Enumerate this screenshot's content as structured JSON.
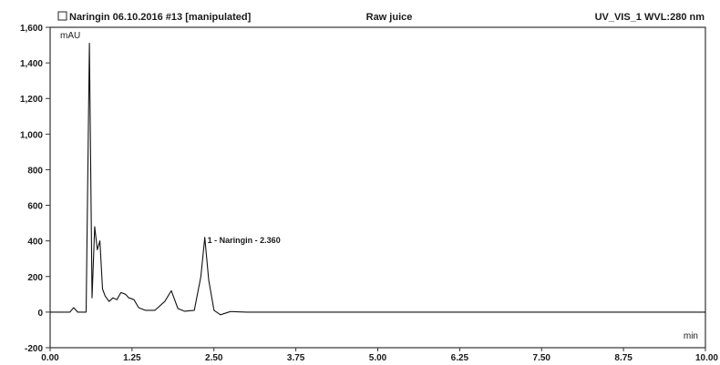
{
  "header": {
    "sample": "Naringin 06.10.2016 #13 [manipulated]",
    "title": "Raw juice",
    "channel": "UV_VIS_1 WVL:280 nm"
  },
  "chart_data": {
    "type": "line",
    "xlabel": "min",
    "ylabel": "mAU",
    "xlim": [
      0,
      10
    ],
    "ylim": [
      -200,
      1600
    ],
    "x_ticks": [
      "0.00",
      "1.25",
      "2.50",
      "3.75",
      "5.00",
      "6.25",
      "7.50",
      "8.75",
      "10.00"
    ],
    "y_ticks": [
      "-200",
      "0",
      "200",
      "400",
      "600",
      "800",
      "1,000",
      "1,200",
      "1,400",
      "1,600"
    ],
    "grid": false,
    "series": [
      {
        "x": [
          0.0,
          0.3,
          0.36,
          0.42,
          0.55,
          0.6,
          0.64,
          0.68,
          0.72,
          0.76,
          0.8,
          0.84,
          0.9,
          0.96,
          1.02,
          1.08,
          1.15,
          1.2,
          1.28,
          1.35,
          1.45,
          1.6,
          1.75,
          1.85,
          1.95,
          2.05,
          2.2,
          2.3,
          2.36,
          2.42,
          2.5,
          2.6,
          2.75,
          3.0,
          4.0,
          5.0,
          6.0,
          7.0,
          8.0,
          9.0,
          10.0
        ],
        "y": [
          0,
          0,
          25,
          0,
          0,
          1510,
          80,
          480,
          350,
          400,
          130,
          90,
          60,
          80,
          70,
          110,
          100,
          80,
          70,
          25,
          10,
          10,
          60,
          120,
          20,
          5,
          10,
          200,
          420,
          180,
          10,
          -15,
          3,
          0,
          0,
          0,
          0,
          0,
          0,
          0,
          0
        ]
      }
    ],
    "annotations": [
      {
        "text": "1 - Naringin - 2.360",
        "x": 2.36,
        "y": 420
      }
    ],
    "color": "#111111"
  }
}
